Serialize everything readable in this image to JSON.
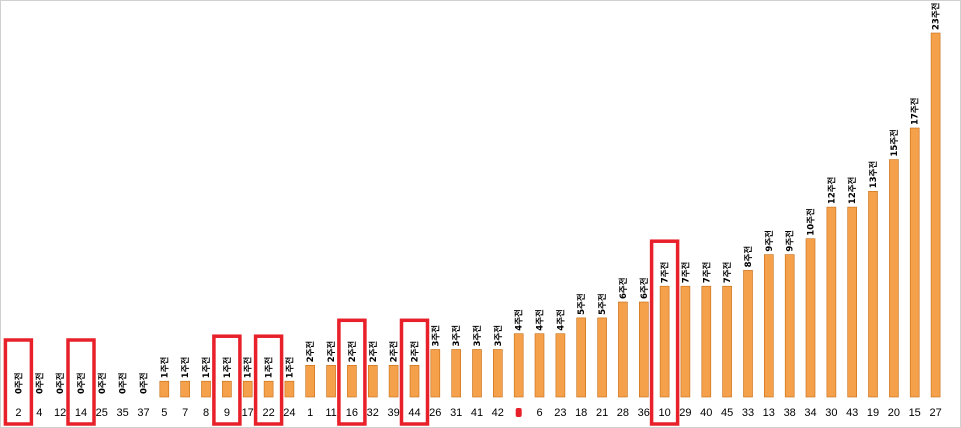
{
  "chart_data": {
    "type": "bar",
    "title": "",
    "xlabel": "",
    "ylabel": "",
    "ylim": [
      0,
      24
    ],
    "grid": false,
    "legend": "none",
    "bar_color": "#f5a04b",
    "bar_edge_color": "#c66c12",
    "highlight_color": "#e8202a",
    "categories": [
      "2",
      "4",
      "12",
      "14",
      "25",
      "35",
      "37",
      "5",
      "7",
      "8",
      "9",
      "17",
      "22",
      "24",
      "1",
      "11",
      "16",
      "32",
      "39",
      "44",
      "26",
      "31",
      "41",
      "42",
      "",
      "6",
      "23",
      "18",
      "21",
      "28",
      "36",
      "10",
      "29",
      "40",
      "45",
      "33",
      "13",
      "38",
      "34",
      "30",
      "43",
      "19",
      "20",
      "15",
      "27"
    ],
    "values": [
      0,
      0,
      0,
      0,
      0,
      0,
      0,
      1,
      1,
      1,
      1,
      1,
      1,
      1,
      2,
      2,
      2,
      2,
      2,
      2,
      3,
      3,
      3,
      3,
      4,
      4,
      4,
      5,
      5,
      6,
      6,
      7,
      7,
      7,
      7,
      8,
      9,
      9,
      10,
      12,
      12,
      13,
      15,
      17,
      23
    ],
    "data_labels": [
      "0주전",
      "0주전",
      "0주전",
      "0주전",
      "0주전",
      "0주전",
      "0주전",
      "1주전",
      "1주전",
      "1주전",
      "1주전",
      "1주전",
      "1주전",
      "1주전",
      "2주전",
      "2주전",
      "2주전",
      "2주전",
      "2주전",
      "2주전",
      "3주전",
      "3주전",
      "3주전",
      "3주전",
      "4주전",
      "4주전",
      "4주전",
      "5주전",
      "5주전",
      "6주전",
      "6주전",
      "7주전",
      "7주전",
      "7주전",
      "7주전",
      "8주전",
      "9주전",
      "9주전",
      "10주전",
      "12주전",
      "12주전",
      "13주전",
      "15주전",
      "17주전",
      "23주전"
    ],
    "highlighted_categories": [
      "2",
      "14",
      "9",
      "22",
      "16",
      "44",
      "10"
    ],
    "marked_category_index": 24
  }
}
